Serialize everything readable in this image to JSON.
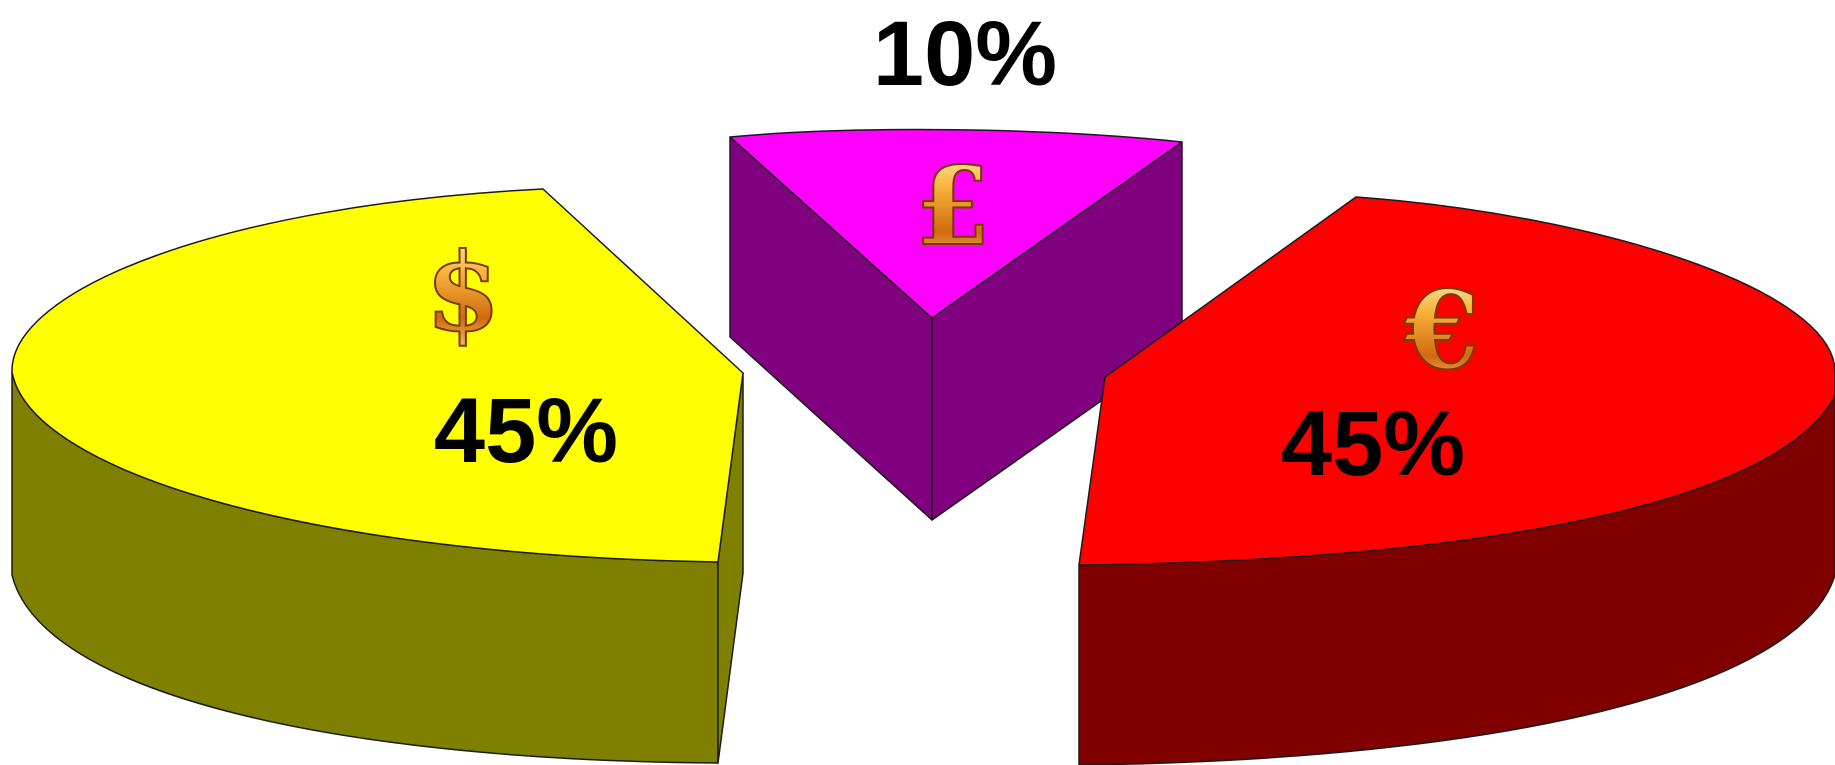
{
  "chart_data": {
    "type": "pie",
    "style": "3d-exploded",
    "slices": [
      {
        "label": "45%",
        "value": 45,
        "icon": "dollar-sign",
        "symbol": "$",
        "top_color": "#ffff00",
        "side_color": "#808000"
      },
      {
        "label": "10%",
        "value": 10,
        "icon": "pound-sign",
        "symbol": "£",
        "top_color": "#ff00ff",
        "side_color": "#800080"
      },
      {
        "label": "45%",
        "value": 45,
        "icon": "euro-sign",
        "symbol": "€",
        "top_color": "#ff0000",
        "side_color": "#800000"
      }
    ],
    "title": "",
    "legend": "none"
  }
}
